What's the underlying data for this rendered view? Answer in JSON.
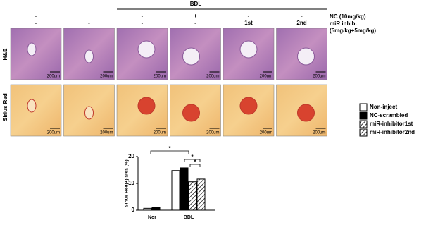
{
  "header": {
    "group_label": "BDL",
    "rows": [
      {
        "label": "NC (10mg/kg)",
        "cells": [
          "-",
          "+",
          "-",
          "+",
          "-",
          "-"
        ]
      },
      {
        "label": "miR inhib.",
        "cells": [
          "-",
          "-",
          "-",
          "-",
          "1st",
          "2nd"
        ]
      }
    ],
    "dose_note": "(5mg/kg+5mg/kg)"
  },
  "panels": [
    {
      "label": "H&E",
      "scale_bars": [
        "200um",
        "200um",
        "200um",
        "200um",
        "200um",
        "200um"
      ]
    },
    {
      "label": "Sirius Red",
      "scale_bars": [
        "200um",
        "200um",
        "200um",
        "200um",
        "200um",
        "200um"
      ]
    }
  ],
  "chart_data": {
    "type": "bar",
    "y_label": "Sirius Red(+) area (%)",
    "categories": [
      "Nor",
      "BDL"
    ],
    "series": [
      {
        "name": "Non-inject",
        "color": "#ffffff",
        "pattern": "solid",
        "values": [
          0.7,
          14.8
        ]
      },
      {
        "name": "NC-scrambled",
        "color": "#000000",
        "pattern": "solid",
        "values": [
          1.0,
          15.8
        ]
      },
      {
        "name": "miR-inhibitor1st",
        "color": "#ffffff",
        "pattern": "hatch",
        "values": [
          null,
          10.6
        ]
      },
      {
        "name": "miR-inhibitor2nd",
        "color": "#ffffff",
        "pattern": "hatch",
        "values": [
          null,
          11.6
        ]
      }
    ],
    "ylim": [
      0,
      20
    ],
    "yticks": [
      0,
      10,
      20
    ],
    "annotations": [
      "*",
      "*",
      "*"
    ]
  }
}
